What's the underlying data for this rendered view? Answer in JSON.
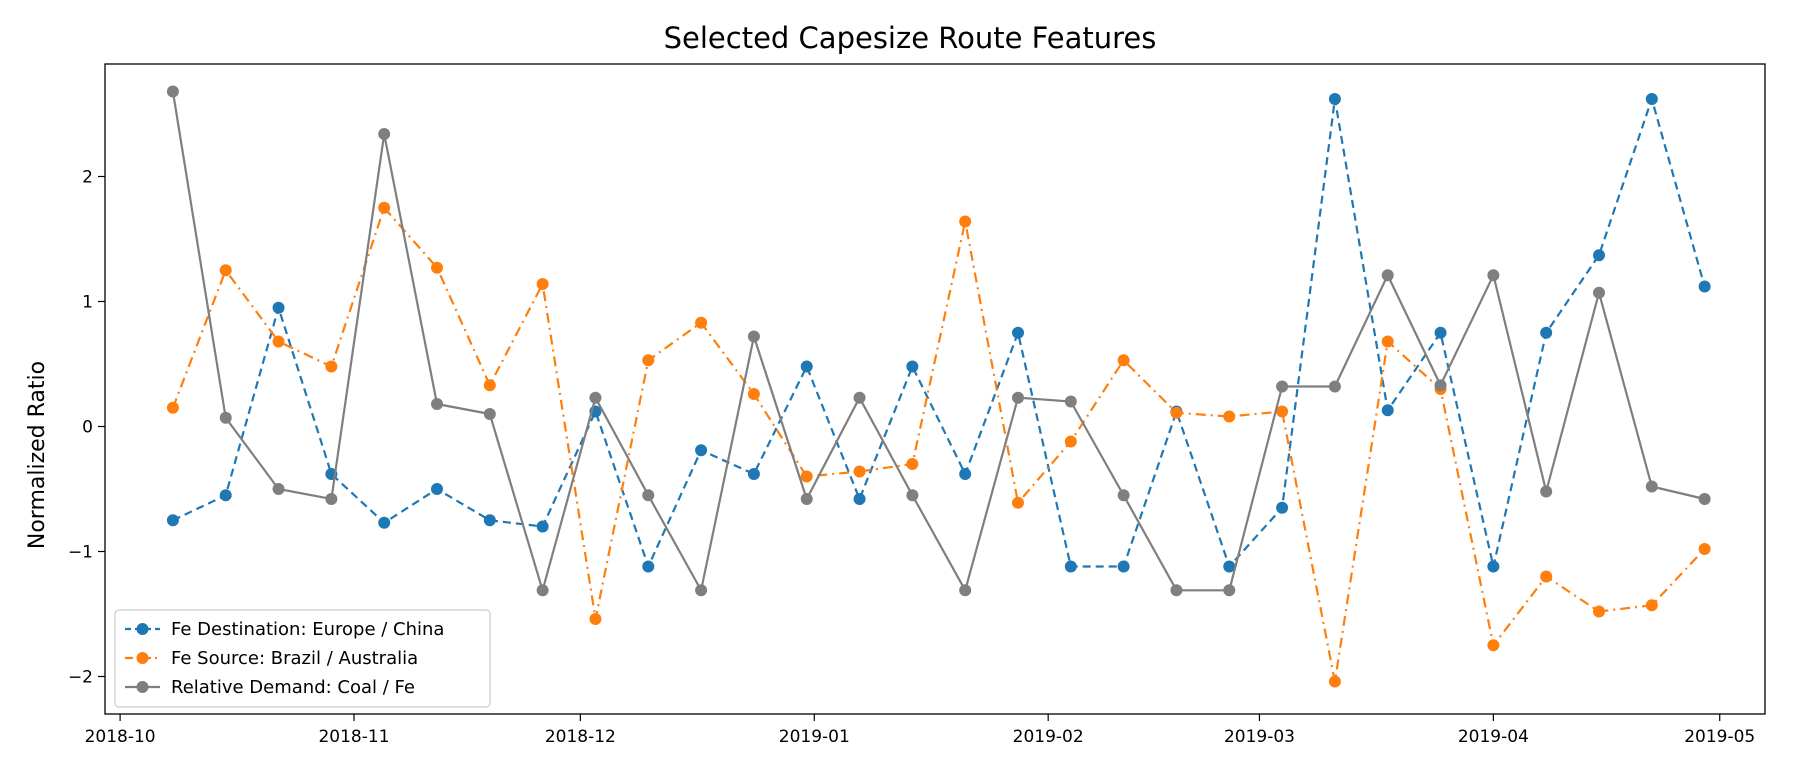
{
  "chart_data": {
    "type": "line",
    "title": "Selected Capesize Route Features",
    "xlabel": "",
    "ylabel": "Normalized Ratio",
    "x_axis": {
      "type": "date",
      "ticks": [
        "2018-10",
        "2018-11",
        "2018-12",
        "2019-01",
        "2019-02",
        "2019-03",
        "2019-04",
        "2019-05"
      ],
      "range": [
        "2018-09-29",
        "2019-05-07"
      ]
    },
    "y_axis": {
      "ticks": [
        -2,
        -1,
        0,
        1,
        2
      ],
      "range": [
        -2.3,
        2.9
      ]
    },
    "legend": "lower-left",
    "grid": false,
    "dates": [
      "2018-10-08",
      "2018-10-15",
      "2018-10-22",
      "2018-10-29",
      "2018-11-05",
      "2018-11-12",
      "2018-11-19",
      "2018-11-26",
      "2018-12-03",
      "2018-12-10",
      "2018-12-17",
      "2018-12-24",
      "2018-12-31",
      "2019-01-07",
      "2019-01-14",
      "2019-01-21",
      "2019-01-28",
      "2019-02-04",
      "2019-02-11",
      "2019-02-18",
      "2019-02-25",
      "2019-03-04",
      "2019-03-11",
      "2019-03-18",
      "2019-03-25",
      "2019-04-01",
      "2019-04-08",
      "2019-04-15",
      "2019-04-22",
      "2019-04-29"
    ],
    "series": [
      {
        "name": "Fe Destination: Europe / China",
        "color": "#1f77b4",
        "linestyle": "dashed",
        "values": [
          -0.75,
          -0.55,
          0.95,
          -0.38,
          -0.77,
          -0.5,
          -0.75,
          -0.8,
          0.12,
          -1.12,
          -0.19,
          -0.38,
          0.48,
          -0.58,
          0.48,
          -0.38,
          0.75,
          -1.12,
          -1.12,
          0.12,
          -1.12,
          -0.65,
          2.62,
          0.13,
          0.75,
          -1.12,
          0.75,
          1.37,
          2.62,
          1.12
        ]
      },
      {
        "name": "Fe Source: Brazil / Australia",
        "color": "#ff7f0e",
        "linestyle": "dashdot",
        "values": [
          0.15,
          1.25,
          0.68,
          0.48,
          1.75,
          1.27,
          0.33,
          1.14,
          -1.54,
          0.53,
          0.83,
          0.26,
          -0.4,
          -0.36,
          -0.3,
          1.64,
          -0.61,
          -0.12,
          0.53,
          0.11,
          0.08,
          0.12,
          -2.04,
          0.68,
          0.3,
          -1.75,
          -1.2,
          -1.48,
          -1.43,
          -0.98
        ]
      },
      {
        "name": "Relative Demand: Coal / Fe",
        "color": "#7f7f7f",
        "linestyle": "solid",
        "values": [
          2.68,
          0.07,
          -0.5,
          -0.58,
          2.34,
          0.18,
          0.1,
          -1.31,
          0.23,
          -0.55,
          -1.31,
          0.72,
          -0.58,
          0.23,
          -0.55,
          -1.31,
          0.23,
          0.2,
          -0.55,
          -1.31,
          -1.31,
          0.32,
          0.32,
          1.21,
          0.33,
          1.21,
          -0.52,
          1.07,
          -0.48,
          -0.58
        ]
      }
    ]
  }
}
